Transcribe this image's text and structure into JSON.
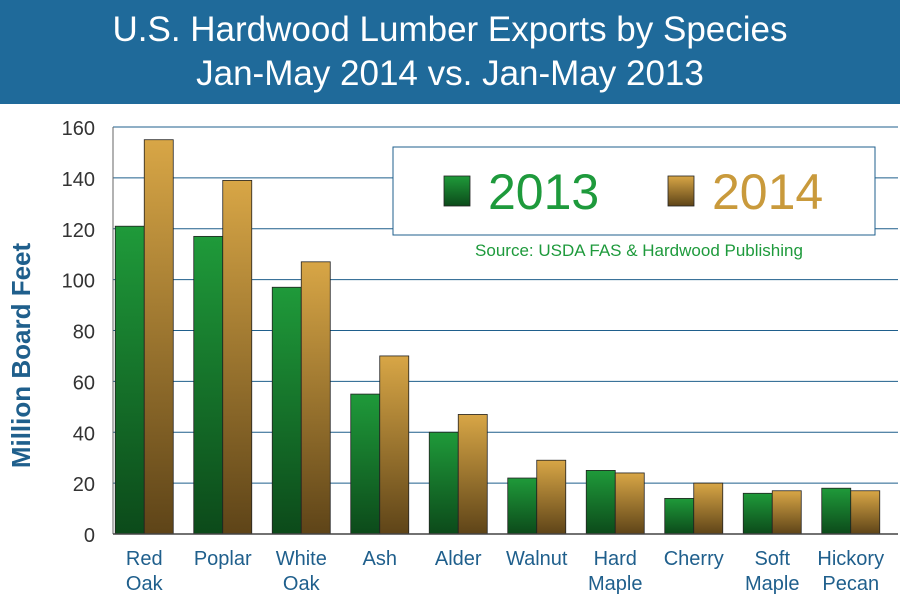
{
  "header": {
    "title_line1": "U.S. Hardwood Lumber Exports by Species",
    "title_line2": "Jan-May 2014 vs. Jan-May 2013"
  },
  "colors": {
    "header_bg": "#1f6a9a",
    "series_2013_top": "#1f9a3a",
    "series_2013_bottom": "#0c4a1a",
    "series_2014_top": "#d8a646",
    "series_2014_bottom": "#5e4418",
    "legend_2013_text": "#1e9a3c",
    "legend_2014_text": "#c99a3c",
    "source_text": "#1e9a3c",
    "ylabel_text": "#1f5f8c"
  },
  "chart_data": {
    "type": "bar",
    "categories": [
      [
        "Red",
        "Oak"
      ],
      [
        "Poplar"
      ],
      [
        "White",
        "Oak"
      ],
      [
        "Ash"
      ],
      [
        "Alder"
      ],
      [
        "Walnut"
      ],
      [
        "Hard",
        "Maple"
      ],
      [
        "Cherry"
      ],
      [
        "Soft",
        "Maple"
      ],
      [
        "Hickory",
        "Pecan"
      ]
    ],
    "series": [
      {
        "name": "2013",
        "values": [
          121,
          117,
          97,
          55,
          40,
          22,
          25,
          14,
          16,
          18
        ]
      },
      {
        "name": "2014",
        "values": [
          155,
          139,
          107,
          70,
          47,
          29,
          24,
          20,
          17,
          17
        ]
      }
    ],
    "ylabel": "Million Board Feet",
    "xlabel": "",
    "ylim": [
      0,
      160
    ],
    "yticks": [
      0,
      20,
      40,
      60,
      80,
      100,
      120,
      140,
      160
    ],
    "grid": true,
    "legend_position": "top-right",
    "annotation": "Source: USDA FAS & Hardwood Publishing"
  }
}
